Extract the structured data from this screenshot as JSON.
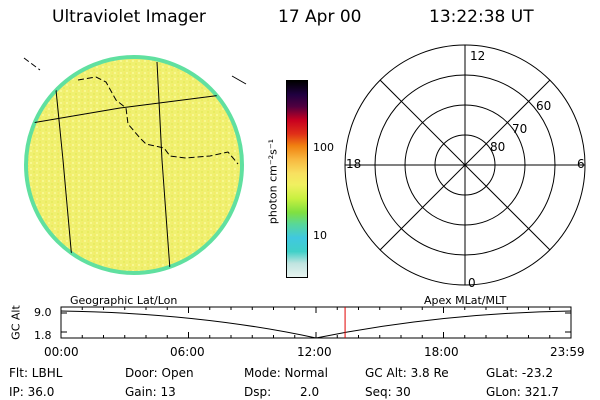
{
  "header": {
    "instrument": "Ultraviolet Imager",
    "date": "17 Apr 00",
    "time": "13:22:38 UT"
  },
  "colorbar": {
    "unit_label": "photon cm⁻²s⁻¹",
    "tick_100": "100",
    "tick_10": "10",
    "colors": [
      "#e8f4f0",
      "#c0e4e0",
      "#40d0c8",
      "#40c8e0",
      "#58d898",
      "#80e040",
      "#c8f040",
      "#f0f060",
      "#f8e060",
      "#f8b840",
      "#f08010",
      "#e03018",
      "#c80020",
      "#500040",
      "#200040",
      "#000000"
    ]
  },
  "polar_plot": {
    "mlt_labels": {
      "top": "12",
      "right": "6",
      "bottom": "0",
      "left": "18"
    },
    "lat_labels": [
      "60",
      "70",
      "80"
    ]
  },
  "earth_image": {
    "fill": "#f0f070",
    "rim": "#60e0a0"
  },
  "timeline": {
    "left_label": "Geographic Lat/Lon",
    "right_label": "Apex MLat/MLT",
    "axis_title": "GC Alt",
    "y_top": "9.0",
    "y_bottom": "1.8",
    "time_labels": [
      "00:00",
      "06:00",
      "12:00",
      "18:00",
      "23:59"
    ],
    "marker_color": "#e00000",
    "current_time_fraction": 0.557
  },
  "status": {
    "filter": "Flt: LBHL",
    "door": "Door: Open",
    "mode": "Mode: Normal",
    "gc_alt": "GC Alt: 3.8 Re",
    "glat": "GLat: -23.2",
    "ip": "IP: 36.0",
    "gain": "Gain: 13",
    "dsp_label": "Dsp:",
    "dsp_value": "2.0",
    "seq": "Seq: 30",
    "glon": "GLon: 321.7"
  }
}
